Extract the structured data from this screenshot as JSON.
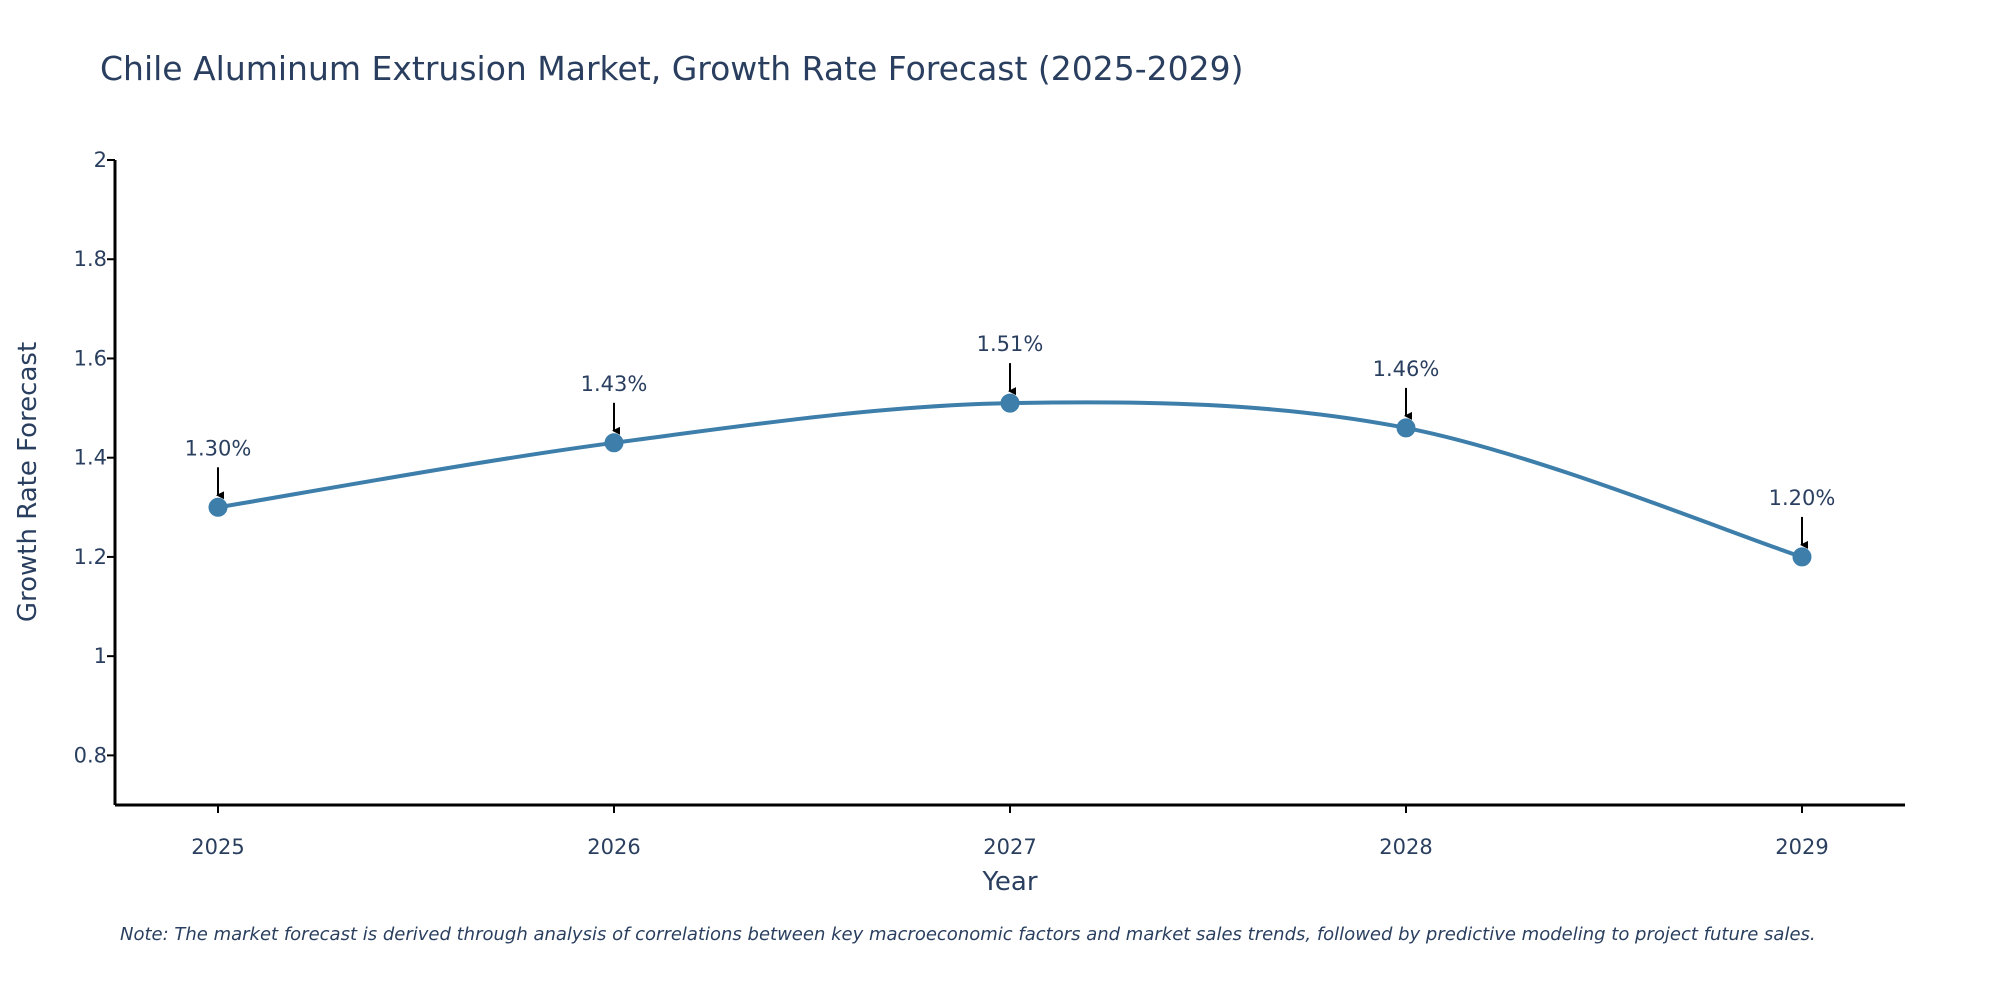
{
  "colors": {
    "series": "#3d7eaa",
    "axis": "#000000",
    "text": "#2a3f5f"
  },
  "chart_data": {
    "type": "line",
    "title": "Chile Aluminum Extrusion Market, Growth Rate Forecast (2025-2029)",
    "xlabel": "Year",
    "ylabel": "Growth Rate Forecast",
    "categories": [
      "2025",
      "2026",
      "2027",
      "2028",
      "2029"
    ],
    "series": [
      {
        "name": "Growth Rate Forecast",
        "values": [
          1.3,
          1.43,
          1.51,
          1.46,
          1.2
        ],
        "labels": [
          "1.30%",
          "1.43%",
          "1.51%",
          "1.46%",
          "1.20%"
        ]
      }
    ],
    "ylim": [
      0.7,
      2.0
    ],
    "yticks": [
      0.8,
      1,
      1.2,
      1.4,
      1.6,
      1.8,
      2
    ],
    "ytick_labels": [
      "0.8",
      "1",
      "1.2",
      "1.4",
      "1.6",
      "1.8",
      "2"
    ],
    "grid": false,
    "note": "Note: The market forecast is derived through analysis of correlations between key macroeconomic factors and market sales trends, followed by predictive modeling to project future sales."
  }
}
